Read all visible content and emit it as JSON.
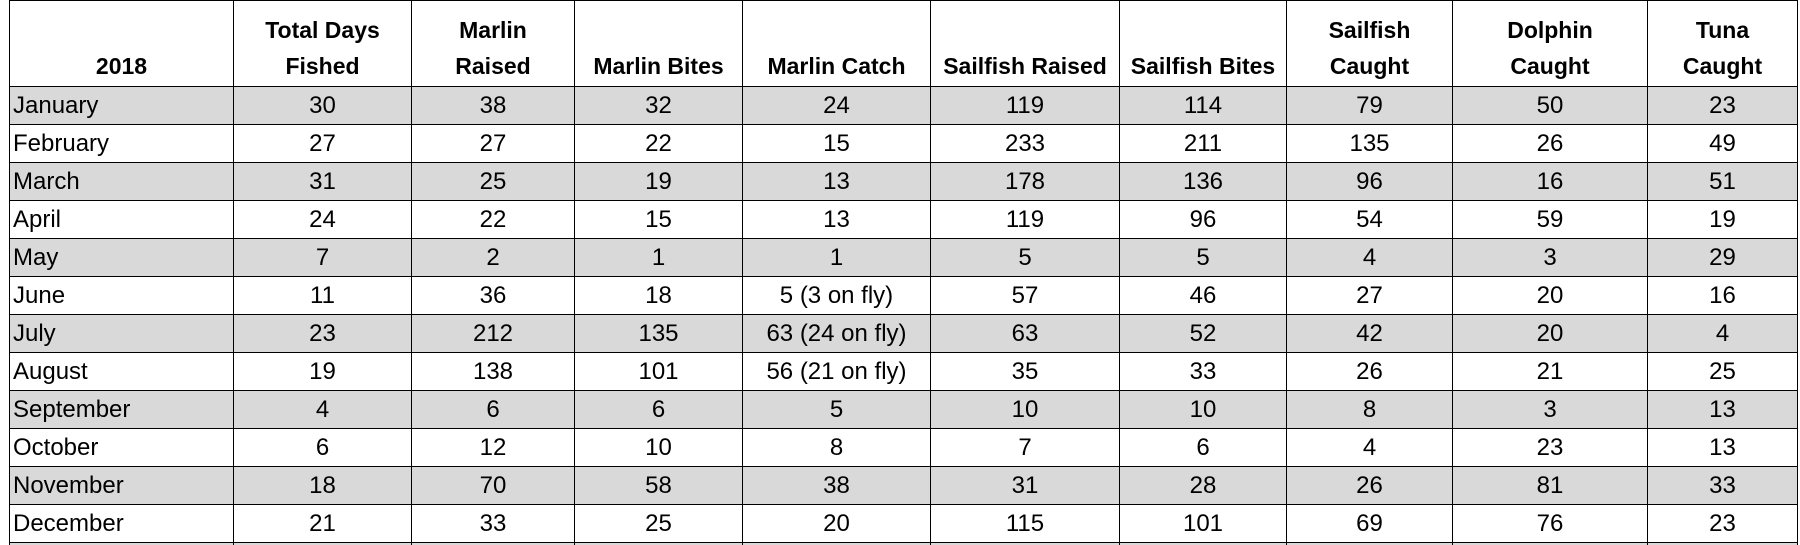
{
  "table": {
    "header": [
      [
        "2018"
      ],
      [
        "Total Days",
        "Fished"
      ],
      [
        "Marlin",
        "Raised"
      ],
      [
        "Marlin Bites"
      ],
      [
        "Marlin Catch"
      ],
      [
        "Sailfish Raised"
      ],
      [
        "Sailfish Bites"
      ],
      [
        "Sailfish",
        "Caught"
      ],
      [
        "Dolphin",
        "Caught"
      ],
      [
        "Tuna",
        "Caught"
      ]
    ],
    "rows": [
      [
        "January",
        30,
        38,
        32,
        24,
        119,
        114,
        79,
        50,
        23
      ],
      [
        "February",
        27,
        27,
        22,
        15,
        233,
        211,
        135,
        26,
        49
      ],
      [
        "March",
        31,
        25,
        19,
        13,
        178,
        136,
        96,
        16,
        51
      ],
      [
        "April",
        24,
        22,
        15,
        13,
        119,
        96,
        54,
        59,
        19
      ],
      [
        "May",
        7,
        2,
        1,
        1,
        5,
        5,
        4,
        3,
        29
      ],
      [
        "June",
        11,
        36,
        18,
        "5 (3 on fly)",
        57,
        46,
        27,
        20,
        16
      ],
      [
        "July",
        23,
        212,
        135,
        "63 (24 on fly)",
        63,
        52,
        42,
        20,
        4
      ],
      [
        "August",
        19,
        138,
        101,
        "56 (21 on fly)",
        35,
        33,
        26,
        21,
        25
      ],
      [
        "September",
        4,
        6,
        6,
        5,
        10,
        10,
        8,
        3,
        13
      ],
      [
        "October",
        6,
        12,
        10,
        8,
        7,
        6,
        4,
        23,
        13
      ],
      [
        "November",
        18,
        70,
        58,
        38,
        31,
        28,
        26,
        81,
        33
      ],
      [
        "December",
        21,
        33,
        25,
        20,
        115,
        101,
        69,
        76,
        23
      ]
    ]
  }
}
